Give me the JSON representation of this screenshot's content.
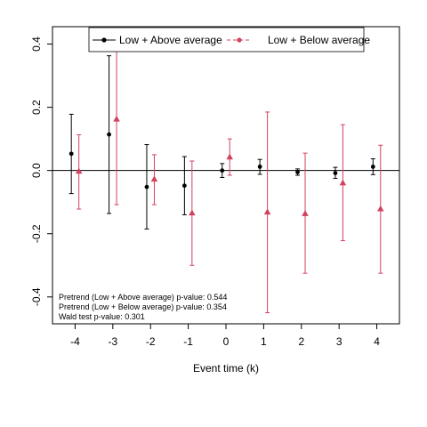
{
  "chart_data": {
    "type": "scatter",
    "title": "",
    "xlabel": "Event time (k)",
    "ylabel": "",
    "x_ticks": [
      -4,
      -3,
      -2,
      -1,
      0,
      1,
      2,
      3,
      4
    ],
    "x_tick_labels": [
      "-4",
      "-3",
      "-2",
      "-1",
      "0",
      "1",
      "2",
      "3",
      "4"
    ],
    "y_ticks": [
      -0.4,
      -0.2,
      0.0,
      0.2,
      0.4
    ],
    "y_tick_labels": [
      "-0.4",
      "-0.2",
      "0.0",
      "0.2",
      "0.4"
    ],
    "xlim": [
      -4.6,
      4.6
    ],
    "ylim": [
      -0.485,
      0.455
    ],
    "reference_line_y": 0,
    "grid": false,
    "legend_position": "top",
    "series": [
      {
        "name": "Low + Above average",
        "color": "#000000",
        "marker": "circle",
        "line_style": "solid",
        "x_offset": -0.1,
        "points": [
          {
            "x": -4,
            "y": 0.053,
            "lo": -0.073,
            "hi": 0.178
          },
          {
            "x": -3,
            "y": 0.114,
            "lo": -0.136,
            "hi": 0.363
          },
          {
            "x": -2,
            "y": -0.052,
            "lo": -0.185,
            "hi": 0.082
          },
          {
            "x": -1,
            "y": -0.048,
            "lo": -0.14,
            "hi": 0.044
          },
          {
            "x": 0,
            "y": 0.0,
            "lo": -0.022,
            "hi": 0.022
          },
          {
            "x": 1,
            "y": 0.012,
            "lo": -0.012,
            "hi": 0.035
          },
          {
            "x": 2,
            "y": -0.005,
            "lo": -0.015,
            "hi": 0.005
          },
          {
            "x": 3,
            "y": -0.008,
            "lo": -0.025,
            "hi": 0.01
          },
          {
            "x": 4,
            "y": 0.012,
            "lo": -0.013,
            "hi": 0.037
          }
        ]
      },
      {
        "name": "Low + Below average",
        "color": "#d1425f",
        "marker": "triangle",
        "line_style": "dashed",
        "x_offset": 0.1,
        "points": [
          {
            "x": -4,
            "y": -0.003,
            "lo": -0.122,
            "hi": 0.113
          },
          {
            "x": -3,
            "y": 0.162,
            "lo": -0.108,
            "hi": 0.43
          },
          {
            "x": -2,
            "y": -0.028,
            "lo": -0.108,
            "hi": 0.05
          },
          {
            "x": -1,
            "y": -0.135,
            "lo": -0.3,
            "hi": 0.03
          },
          {
            "x": 0,
            "y": 0.042,
            "lo": -0.015,
            "hi": 0.1
          },
          {
            "x": 1,
            "y": -0.132,
            "lo": -0.45,
            "hi": 0.185
          },
          {
            "x": 2,
            "y": -0.137,
            "lo": -0.325,
            "hi": 0.055
          },
          {
            "x": 3,
            "y": -0.04,
            "lo": -0.222,
            "hi": 0.145
          },
          {
            "x": 4,
            "y": -0.122,
            "lo": -0.325,
            "hi": 0.08
          }
        ]
      }
    ],
    "annotations": [
      "Pretrend (Low + Above average) p-value: 0.544",
      "Pretrend (Low + Below average) p-value: 0.354",
      "Wald test p-value: 0.301"
    ]
  }
}
